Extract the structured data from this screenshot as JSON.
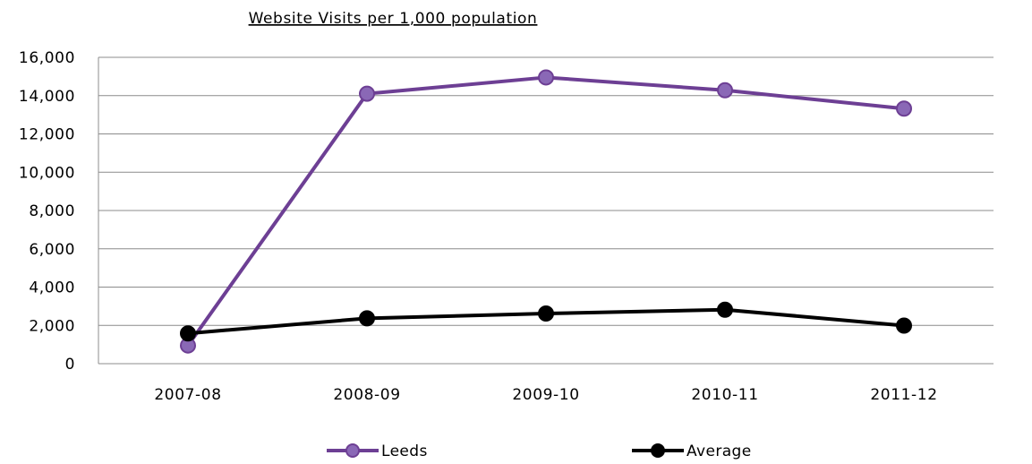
{
  "chart_data": {
    "type": "line",
    "title": "Website Visits per 1,000 population",
    "categories": [
      "2007-08",
      "2008-09",
      "2009-10",
      "2010-11",
      "2011-12"
    ],
    "series": [
      {
        "name": "Leeds",
        "values": [
          950,
          14100,
          14950,
          14280,
          13320
        ],
        "color": "#6d3f94",
        "marker_fill": "#8a68b6",
        "marker_stroke": "#6d3f94"
      },
      {
        "name": "Average",
        "values": [
          1580,
          2370,
          2620,
          2820,
          1990
        ],
        "color": "#000000",
        "marker_fill": "#000000",
        "marker_stroke": "#000000"
      }
    ],
    "ylim": [
      0,
      16000
    ],
    "y_ticks": [
      "16,000",
      "14,000",
      "12,000",
      "10,000",
      "8,000",
      "6,000",
      "4,000",
      "2,000",
      "0"
    ],
    "grid": true,
    "legend_position": "bottom"
  }
}
